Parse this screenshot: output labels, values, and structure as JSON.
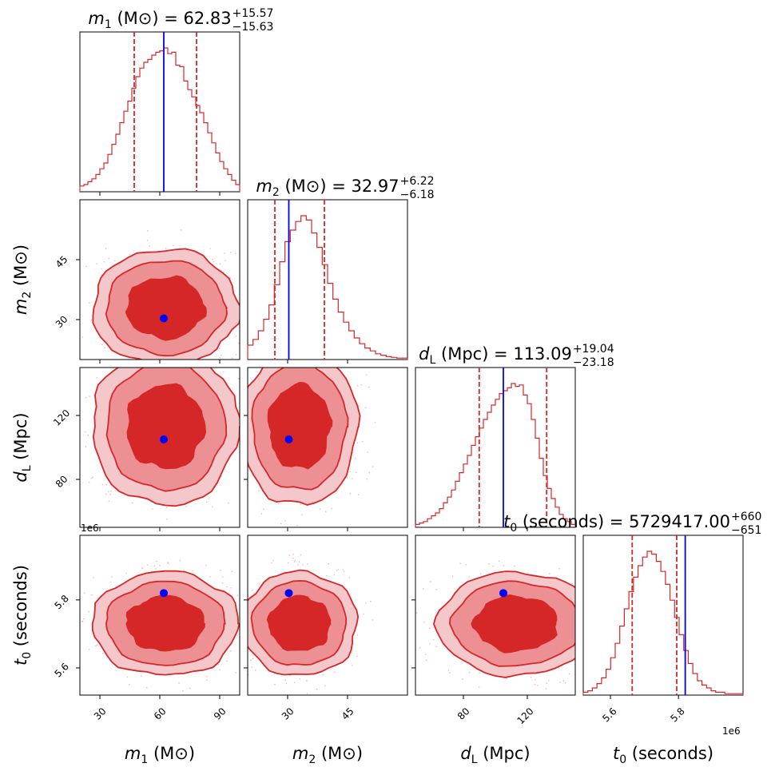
{
  "chart_data": {
    "type": "corner",
    "colors": {
      "posterior": "#d62728",
      "truth": "#0000ff"
    },
    "parameters": [
      {
        "id": "m1",
        "symbol": "m",
        "subscript": "1",
        "unit": "(M⊙)",
        "range": [
          20,
          100
        ],
        "ticks": [
          30,
          60,
          90
        ],
        "truth": 62,
        "median": "62.83",
        "plus": "+15.57",
        "minus": "−15.63",
        "q_low": 47.2,
        "q_high": 78.4,
        "sigma": 15.6
      },
      {
        "id": "m2",
        "symbol": "m",
        "subscript": "2",
        "unit": "(M⊙)",
        "range": [
          20,
          60
        ],
        "ticks": [
          30,
          45
        ],
        "truth": 30.3,
        "median": "32.97",
        "plus": "+6.22",
        "minus": "−6.18",
        "q_low": 26.8,
        "q_high": 39.2,
        "sigma": 6.2
      },
      {
        "id": "dL",
        "symbol": "d",
        "subscript": "L",
        "unit": "(Mpc)",
        "range": [
          50,
          150
        ],
        "ticks": [
          80,
          120
        ],
        "truth": 105,
        "median": "113.09",
        "plus": "+19.04",
        "minus": "−23.18",
        "q_low": 89.9,
        "q_high": 132.1,
        "sigma": 21
      },
      {
        "id": "t0",
        "symbol": "t",
        "subscript": "0",
        "unit": "(seconds)",
        "range": [
          5.52,
          5.99
        ],
        "ticks": [
          5.6,
          5.8
        ],
        "offset": "1e6",
        "truth": 5.82,
        "median": "5729417.00",
        "plus": "+660",
        "minus": "−651",
        "q_low": 5.664,
        "q_high": 5.795,
        "sigma": 0.065
      }
    ],
    "hist_shapes": {
      "m1": [
        0.04,
        0.05,
        0.07,
        0.09,
        0.12,
        0.16,
        0.2,
        0.26,
        0.33,
        0.4,
        0.48,
        0.56,
        0.63,
        0.72,
        0.8,
        0.86,
        0.9,
        0.92,
        0.95,
        0.97,
        0.98,
        1.0,
        0.96,
        0.97,
        0.88,
        0.87,
        0.77,
        0.71,
        0.66,
        0.6,
        0.55,
        0.48,
        0.41,
        0.34,
        0.27,
        0.21,
        0.16,
        0.12,
        0.08,
        0.05
      ],
      "m2": [
        0.1,
        0.14,
        0.2,
        0.28,
        0.38,
        0.52,
        0.68,
        0.82,
        0.9,
        0.96,
        1.0,
        0.97,
        0.88,
        0.78,
        0.66,
        0.53,
        0.42,
        0.33,
        0.26,
        0.2,
        0.15,
        0.11,
        0.08,
        0.06,
        0.04,
        0.03,
        0.02,
        0.015,
        0.01,
        0.01
      ],
      "dL": [
        0.02,
        0.03,
        0.04,
        0.06,
        0.08,
        0.1,
        0.13,
        0.17,
        0.21,
        0.26,
        0.32,
        0.38,
        0.44,
        0.5,
        0.57,
        0.63,
        0.69,
        0.75,
        0.8,
        0.85,
        0.89,
        0.93,
        0.95,
        0.97,
        1.0,
        0.98,
        0.99,
        0.92,
        0.86,
        0.75,
        0.62,
        0.48,
        0.36,
        0.27,
        0.2,
        0.14,
        0.09,
        0.06,
        0.04,
        0.02
      ],
      "t0": [
        0.02,
        0.03,
        0.05,
        0.08,
        0.12,
        0.18,
        0.26,
        0.36,
        0.48,
        0.6,
        0.72,
        0.82,
        0.9,
        0.96,
        1.0,
        0.98,
        0.93,
        0.86,
        0.77,
        0.66,
        0.54,
        0.42,
        0.31,
        0.22,
        0.15,
        0.1,
        0.07,
        0.05,
        0.03,
        0.02,
        0.02,
        0.01,
        0.01,
        0.01,
        0.01
      ]
    }
  }
}
